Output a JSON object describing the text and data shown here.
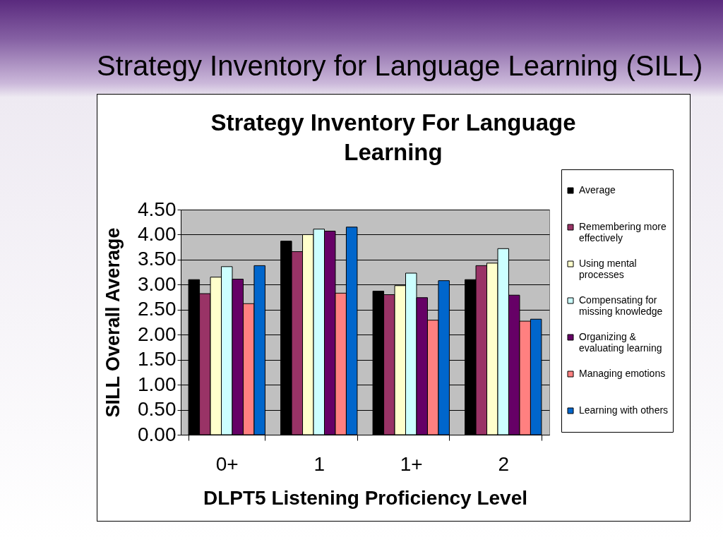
{
  "chart_data": {
    "type": "bar",
    "title": "Strategy Inventory for Language Learning (SILL)",
    "subtitle": "Strategy Inventory For Language Learning",
    "xlabel": "DLPT5 Listening Proficiency Level",
    "ylabel": "SILL Overall Average",
    "categories": [
      "0+",
      "1",
      "1+",
      "2"
    ],
    "series": [
      {
        "name": "Average",
        "color": "#000000",
        "values": [
          3.1,
          3.87,
          2.87,
          3.1
        ]
      },
      {
        "name": "Remembering more effectively",
        "color": "#993366",
        "values": [
          2.82,
          3.66,
          2.8,
          3.38
        ]
      },
      {
        "name": "Using mental processes",
        "color": "#ffffcc",
        "values": [
          3.15,
          4.0,
          2.98,
          3.43
        ]
      },
      {
        "name": "Compensating for missing knowledge",
        "color": "#ccffff",
        "values": [
          3.36,
          4.11,
          3.23,
          3.72
        ]
      },
      {
        "name": "Organizing & evaluating learning",
        "color": "#660066",
        "values": [
          3.11,
          4.07,
          2.74,
          2.79
        ]
      },
      {
        "name": "Managing emotions",
        "color": "#ff8080",
        "values": [
          2.62,
          2.83,
          2.29,
          2.27
        ]
      },
      {
        "name": "Learning with others",
        "color": "#0066cc",
        "values": [
          3.38,
          4.15,
          3.08,
          2.31
        ]
      }
    ],
    "ylim": [
      0,
      4.5
    ],
    "yticks": [
      {
        "value": 0,
        "label": "0.00"
      },
      {
        "value": 0.5,
        "label": "0.50"
      },
      {
        "value": 1,
        "label": "1.00"
      },
      {
        "value": 1.5,
        "label": "1.50"
      },
      {
        "value": 2,
        "label": "2.00"
      },
      {
        "value": 2.5,
        "label": "2.50"
      },
      {
        "value": 3,
        "label": "3.00"
      },
      {
        "value": 3.5,
        "label": "3.50"
      },
      {
        "value": 4,
        "label": "4.00"
      },
      {
        "value": 4.5,
        "label": "4.50"
      }
    ],
    "grid": "y",
    "legend": "right"
  }
}
